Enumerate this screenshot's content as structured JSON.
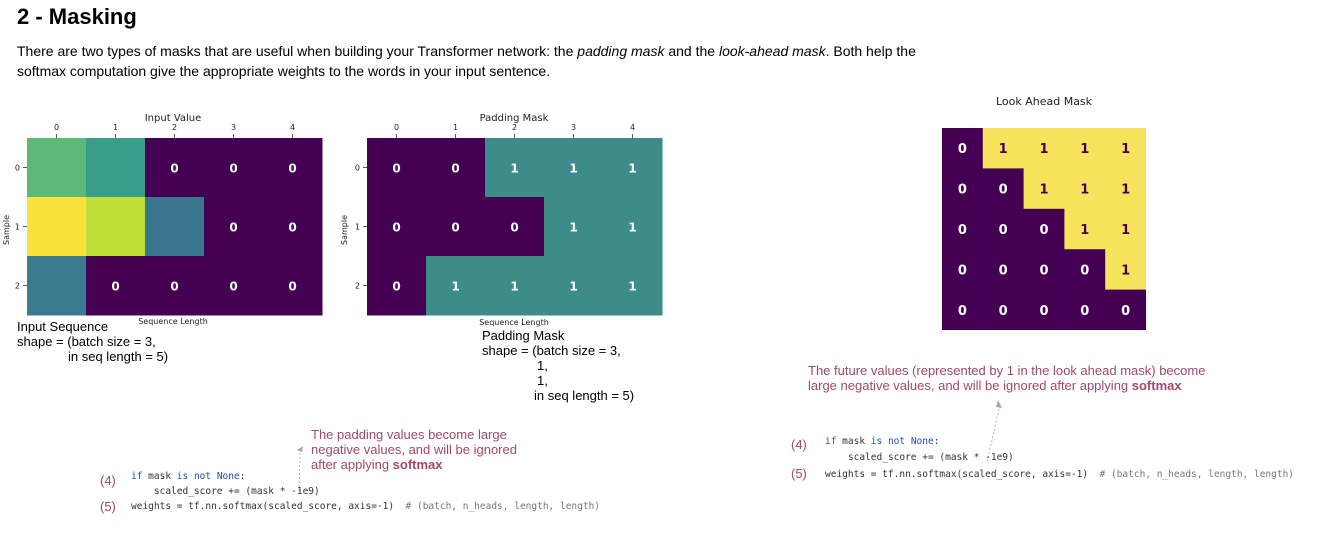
{
  "title": "2 - Masking",
  "intro": {
    "part1": "There are two types of masks that are useful when building your Transformer network: the ",
    "em1": "padding mask",
    "part2": " and the ",
    "em2": "look-ahead mask",
    "part3": ". Both help the softmax computation give the appropriate weights to the words in your input sentence."
  },
  "input_value_chart": {
    "title": "Input Value",
    "xlabel": "Sequence Length",
    "ylabel": "Sample",
    "xticks": [
      "0",
      "1",
      "2",
      "3",
      "4"
    ],
    "yticks": [
      "0",
      "1",
      "2"
    ],
    "cell_labels": [
      [
        "",
        "",
        "0",
        "0",
        "0"
      ],
      [
        "",
        "",
        "",
        "0",
        "0"
      ],
      [
        "",
        "0",
        "0",
        "0",
        "0"
      ]
    ],
    "cell_colors": [
      [
        "#5cb977",
        "#3a9d89",
        "#440154",
        "#440154",
        "#440154"
      ],
      [
        "#f8e23b",
        "#bfde37",
        "#3b768f",
        "#440154",
        "#440154"
      ],
      [
        "#3a7b8f",
        "#440154",
        "#440154",
        "#440154",
        "#440154"
      ]
    ]
  },
  "padding_mask_chart": {
    "title": "Padding Mask",
    "xlabel": "Sequence Length",
    "ylabel": "Sample",
    "xticks": [
      "0",
      "1",
      "2",
      "3",
      "4"
    ],
    "yticks": [
      "0",
      "1",
      "2"
    ],
    "cell_labels": [
      [
        "0",
        "0",
        "1",
        "1",
        "1"
      ],
      [
        "0",
        "0",
        "0",
        "1",
        "1"
      ],
      [
        "0",
        "1",
        "1",
        "1",
        "1"
      ]
    ],
    "colors": {
      "zero": "#440154",
      "one": "#3e8c8a"
    }
  },
  "look_ahead_chart": {
    "title": "Look Ahead Mask",
    "cell_labels": [
      [
        "0",
        "1",
        "1",
        "1",
        "1"
      ],
      [
        "0",
        "0",
        "1",
        "1",
        "1"
      ],
      [
        "0",
        "0",
        "0",
        "1",
        "1"
      ],
      [
        "0",
        "0",
        "0",
        "0",
        "1"
      ],
      [
        "0",
        "0",
        "0",
        "0",
        "0"
      ]
    ],
    "colors": {
      "zero": "#440154",
      "one": "#f8e45c"
    }
  },
  "input_caption": {
    "line1": "Input Sequence",
    "line2": "shape = (batch size = 3,",
    "line3": "in seq length = 5)"
  },
  "padding_caption": {
    "line1": "Padding Mask",
    "line2": "shape = (batch size = 3,",
    "line3": "1,",
    "line4": "1,",
    "line5": "in seq length = 5)"
  },
  "padding_note": {
    "line1": "The padding values become large",
    "line2": "negative values, and will be ignored",
    "line3_pre": "after applying ",
    "line3_bold": "softmax"
  },
  "look_note": {
    "line1": "The future values (represented by 1 in the look ahead mask) become",
    "line2_pre": "large negative values, and will be ignored after applying ",
    "line2_bold": "softmax"
  },
  "code_left": {
    "num4": "(4)",
    "num5": "(5)",
    "l1_kw1": "if",
    "l1_mid": " mask ",
    "l1_kw2": "is not None",
    "l1_end": ":",
    "l2": "    scaled_score += (mask * -1e9)",
    "l3_pre": "weights = tf.nn.softmax(scaled_score, axis=-1)",
    "l3_comment": "  # (batch, n_heads, length, length)"
  },
  "code_right": {
    "num4": "(4)",
    "num5": "(5)",
    "l1_kw1": "if",
    "l1_mid": " mask ",
    "l1_kw2": "is not None",
    "l1_end": ":",
    "l2": "    scaled_score += (mask * -1e9)",
    "l3_pre": "weights = tf.nn.softmax(scaled_score, axis=-1)",
    "l3_comment": "  # (batch, n_heads, length, length)"
  }
}
